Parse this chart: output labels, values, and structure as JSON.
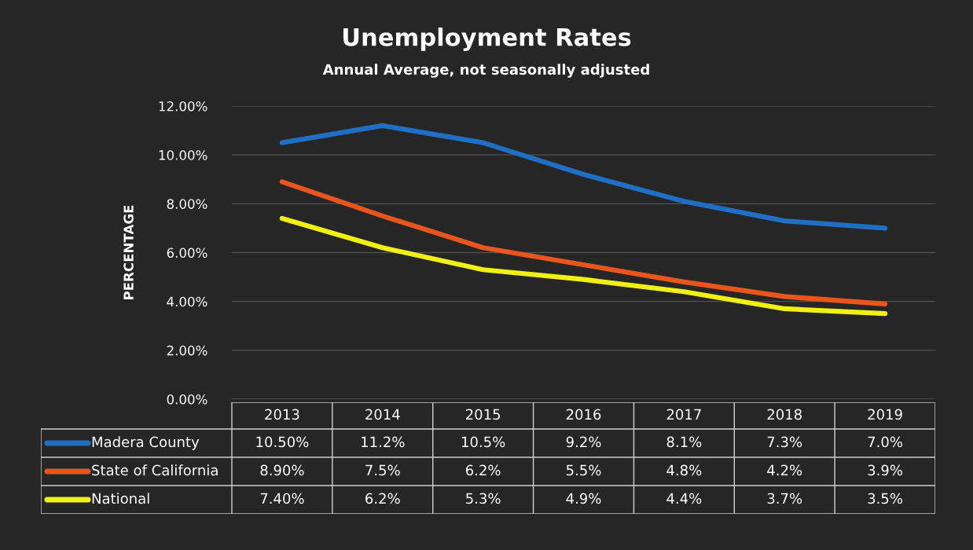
{
  "chart_data": {
    "type": "line",
    "title": "Unemployment Rates",
    "subtitle": "Annual Average, not seasonally adjusted",
    "ylabel": "PERCENTAGE",
    "categories": [
      "2013",
      "2014",
      "2015",
      "2016",
      "2017",
      "2018",
      "2019"
    ],
    "ylim": [
      0,
      12
    ],
    "yticks": [
      {
        "value": 0,
        "label": "0.00%"
      },
      {
        "value": 2,
        "label": "2.00%"
      },
      {
        "value": 4,
        "label": "4.00%"
      },
      {
        "value": 6,
        "label": "6.00%"
      },
      {
        "value": 8,
        "label": "8.00%"
      },
      {
        "value": 10,
        "label": "10.00%"
      },
      {
        "value": 12,
        "label": "12.00%"
      }
    ],
    "grid": "y",
    "legend": "bottom",
    "marker": "none",
    "line_style": "solid",
    "series": [
      {
        "name": "Madera County",
        "color": "#1f6fc4",
        "values": [
          10.5,
          11.2,
          10.5,
          9.2,
          8.1,
          7.3,
          7.0
        ],
        "value_labels": [
          "10.50%",
          "11.2%",
          "10.5%",
          "9.2%",
          "8.1%",
          "7.3%",
          "7.0%"
        ]
      },
      {
        "name": "State of California",
        "color": "#e8561e",
        "values": [
          8.9,
          7.5,
          6.2,
          5.5,
          4.8,
          4.2,
          3.9
        ],
        "value_labels": [
          "8.90%",
          "7.5%",
          "6.2%",
          "5.5%",
          "4.8%",
          "4.2%",
          "3.9%"
        ]
      },
      {
        "name": "National",
        "color": "#f0f012",
        "values": [
          7.4,
          6.2,
          5.3,
          4.9,
          4.4,
          3.7,
          3.5
        ],
        "value_labels": [
          "7.40%",
          "6.2%",
          "5.3%",
          "4.9%",
          "4.4%",
          "3.7%",
          "3.5%"
        ]
      }
    ]
  }
}
